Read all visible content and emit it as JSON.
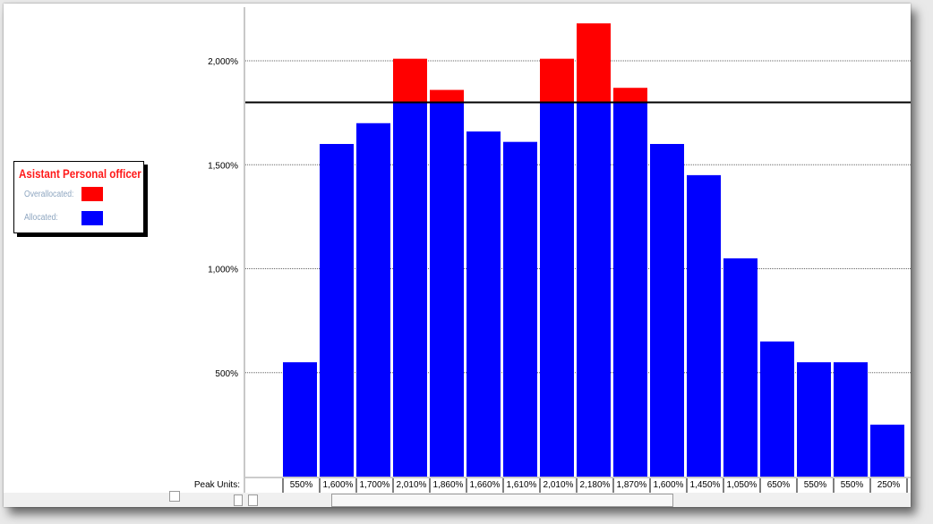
{
  "legend": {
    "title": "Asistant Personal officer",
    "overallocated_label": "Overallocated:",
    "allocated_label": "Allocated:"
  },
  "colors": {
    "overallocated": "#ff0000",
    "allocated": "#0000ff",
    "legend_title": "#ff1a1a",
    "legend_label": "#8ea6c0"
  },
  "chart_data": {
    "type": "bar",
    "stacked": true,
    "ylim": [
      0,
      2600
    ],
    "y_ticks": [
      {
        "value": 500,
        "label": "500%"
      },
      {
        "value": 1000,
        "label": "1,000%"
      },
      {
        "value": 1500,
        "label": "1,500%"
      },
      {
        "value": 2000,
        "label": "2,000%"
      }
    ],
    "max_units_line": 1800,
    "grid": true,
    "peak_units_label": "Peak Units:",
    "peak_units": [
      "550%",
      "1,600%",
      "1,700%",
      "2,010%",
      "1,860%",
      "1,660%",
      "1,610%",
      "2,010%",
      "2,180%",
      "1,870%",
      "1,600%",
      "1,450%",
      "1,050%",
      "650%",
      "550%",
      "550%",
      "250%"
    ],
    "series": [
      {
        "name": "Allocated",
        "values": [
          550,
          1600,
          1700,
          1800,
          1800,
          1660,
          1610,
          1800,
          1800,
          1800,
          1600,
          1450,
          1050,
          650,
          550,
          550,
          250
        ]
      },
      {
        "name": "Overallocated",
        "values": [
          0,
          0,
          0,
          210,
          60,
          0,
          0,
          210,
          380,
          70,
          0,
          0,
          0,
          0,
          0,
          0,
          0
        ]
      }
    ]
  }
}
